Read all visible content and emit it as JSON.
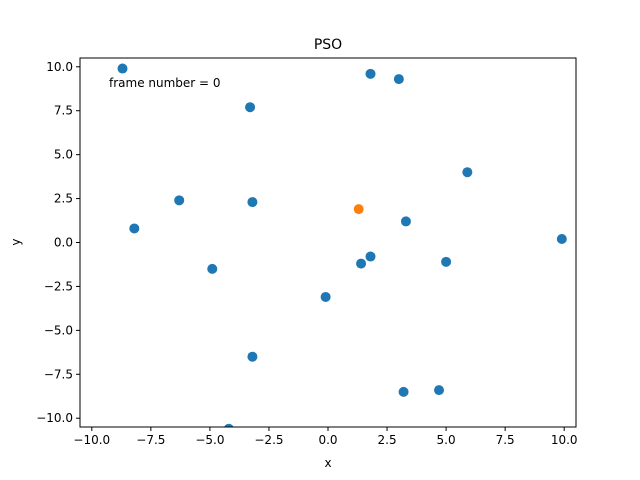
{
  "chart_data": {
    "type": "scatter",
    "title": "PSO",
    "xlabel": "x",
    "ylabel": "y",
    "xlim": [
      -10.5,
      10.5
    ],
    "ylim": [
      -10.5,
      10.5
    ],
    "xticks": [
      -10.0,
      -7.5,
      -5.0,
      -2.5,
      0.0,
      2.5,
      5.0,
      7.5,
      10.0
    ],
    "yticks": [
      -10.0,
      -7.5,
      -5.0,
      -2.5,
      0.0,
      2.5,
      5.0,
      7.5,
      10.0
    ],
    "xtick_labels": [
      "−10.0",
      "−7.5",
      "−5.0",
      "−2.5",
      "0.0",
      "2.5",
      "5.0",
      "7.5",
      "10.0"
    ],
    "ytick_labels": [
      "−10.0",
      "−7.5",
      "−5.0",
      "−2.5",
      "0.0",
      "2.5",
      "5.0",
      "7.5",
      "10.0"
    ],
    "grid": false,
    "annotation": "frame number = 0",
    "series": [
      {
        "color": "#1f77b4",
        "points": [
          {
            "x": -8.7,
            "y": 9.9
          },
          {
            "x": 1.8,
            "y": 9.6
          },
          {
            "x": 3.0,
            "y": 9.3
          },
          {
            "x": -3.3,
            "y": 7.7
          },
          {
            "x": 5.9,
            "y": 4.0
          },
          {
            "x": -6.3,
            "y": 2.4
          },
          {
            "x": -3.2,
            "y": 2.3
          },
          {
            "x": 3.3,
            "y": 1.2
          },
          {
            "x": -8.2,
            "y": 0.8
          },
          {
            "x": 9.9,
            "y": 0.2
          },
          {
            "x": 1.8,
            "y": -0.8
          },
          {
            "x": 1.4,
            "y": -1.2
          },
          {
            "x": 5.0,
            "y": -1.1
          },
          {
            "x": -4.9,
            "y": -1.5
          },
          {
            "x": -0.1,
            "y": -3.1
          },
          {
            "x": -3.2,
            "y": -6.5
          },
          {
            "x": 4.7,
            "y": -8.4
          },
          {
            "x": 3.2,
            "y": -8.5
          },
          {
            "x": -4.2,
            "y": -10.6
          }
        ]
      },
      {
        "color": "#ff7f0e",
        "points": [
          {
            "x": 1.3,
            "y": 1.9
          }
        ]
      }
    ]
  }
}
